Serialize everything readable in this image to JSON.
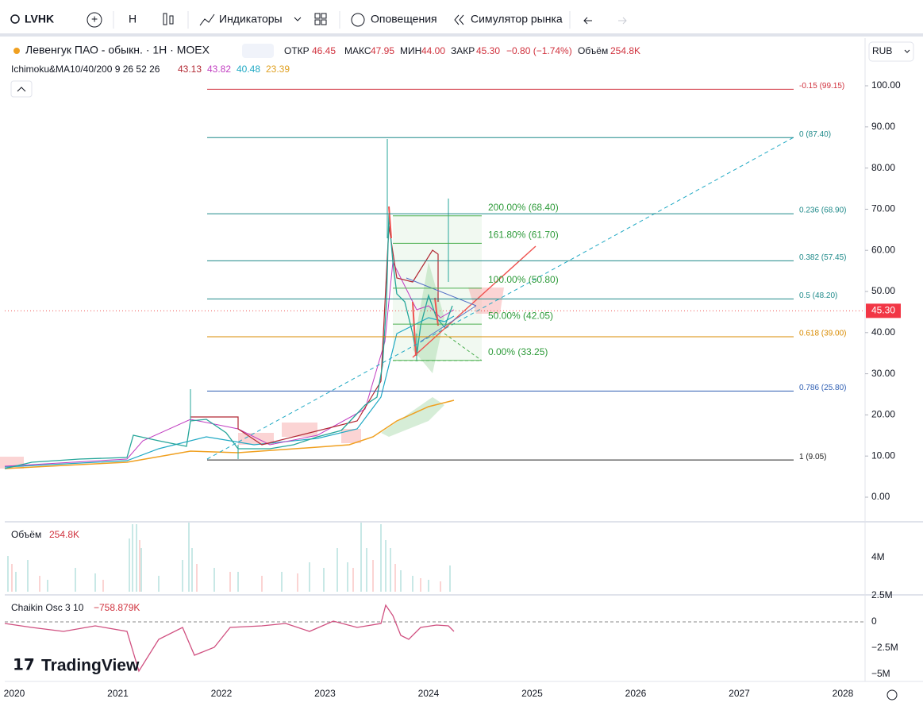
{
  "toolbar": {
    "symbol": "LVHK",
    "interval": "H",
    "indicators": "Индикаторы",
    "alerts": "Оповещения",
    "replay": "Симулятор рынка"
  },
  "header": {
    "title": "Левенгук ПАО - обыкн. · 1H · MOEX",
    "open_label": "ОТКР",
    "open": "46.45",
    "high_label": "МАКС",
    "high": "47.95",
    "low_label": "МИН",
    "low": "44.00",
    "close_label": "ЗАКР",
    "close": "45.30",
    "change": "−0.80 (−1.74%)",
    "volume_label": "Объём",
    "volume": "254.8K",
    "currency": "RUB"
  },
  "indicator": {
    "name": "Ichimoku&MA10/40/200 9 26 52 26",
    "values": [
      {
        "label": "43.13",
        "color": "#b22833"
      },
      {
        "label": "43.82",
        "color": "#c13ec1"
      },
      {
        "label": "40.48",
        "color": "#20a9c4"
      },
      {
        "label": "23.39",
        "color": "#e0a020"
      }
    ]
  },
  "price_axis": {
    "ticks": [
      {
        "value": 100,
        "label": "100.00"
      },
      {
        "value": 90,
        "label": "90.00"
      },
      {
        "value": 80,
        "label": "80.00"
      },
      {
        "value": 70,
        "label": "70.00"
      },
      {
        "value": 60,
        "label": "60.00"
      },
      {
        "value": 50,
        "label": "50.00"
      },
      {
        "value": 40,
        "label": "40.00"
      },
      {
        "value": 30,
        "label": "30.00"
      },
      {
        "value": 20,
        "label": "20.00"
      },
      {
        "value": 10,
        "label": "10.00"
      },
      {
        "value": 0,
        "label": "0.00"
      }
    ],
    "current": {
      "value": 45.3,
      "label": "45.30"
    }
  },
  "fib_levels": [
    {
      "value": 99.15,
      "label": "-0.15 (99.15)",
      "color": "#d0313d"
    },
    {
      "value": 87.4,
      "label": "0 (87.40)",
      "color": "#1f8a8a"
    },
    {
      "value": 68.9,
      "label": "0.236 (68.90)",
      "color": "#1f8a8a"
    },
    {
      "value": 57.45,
      "label": "0.382 (57.45)",
      "color": "#1f8a8a"
    },
    {
      "value": 48.2,
      "label": "0.5 (48.20)",
      "color": "#1f8a8a"
    },
    {
      "value": 39,
      "label": "0.618 (39.00)",
      "color": "#d98b00"
    },
    {
      "value": 25.8,
      "label": "0.786 (25.80)",
      "color": "#2f5fb3"
    },
    {
      "value": 9.05,
      "label": "1 (9.05)",
      "color": "#222222"
    }
  ],
  "projection": [
    {
      "value": 68.4,
      "label": "200.00% (68.40)"
    },
    {
      "value": 61.7,
      "label": "161.80% (61.70)"
    },
    {
      "value": 50.8,
      "label": "100.00% (50.80)"
    },
    {
      "value": 42.05,
      "label": "50.00% (42.05)"
    },
    {
      "value": 33.25,
      "label": "0.00% (33.25)"
    }
  ],
  "volume_pane": {
    "title": "Объём",
    "value": "254.8K",
    "ticks": [
      "4M",
      "2.5M"
    ]
  },
  "chaikin_pane": {
    "title": "Chaikin Osc 3 10",
    "value": "−758.879K",
    "ticks": [
      "0",
      "−2.5M",
      "−5M"
    ]
  },
  "time_axis": [
    "2020",
    "2021",
    "2022",
    "2023",
    "2024",
    "2025",
    "2026",
    "2027",
    "2028"
  ],
  "logo": "TradingView"
}
